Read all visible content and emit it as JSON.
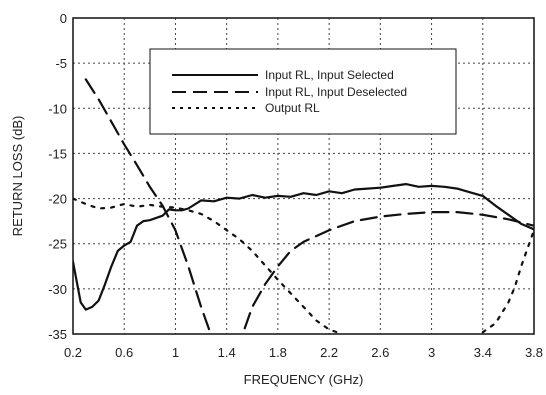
{
  "chart_data": {
    "type": "line",
    "xlabel": "FREQUENCY (GHz)",
    "ylabel": "RETURN LOSS (dB)",
    "xlim": [
      0.2,
      3.8
    ],
    "ylim": [
      -35,
      0
    ],
    "xticks": [
      "0.2",
      "0.6",
      "1",
      "1.4",
      "1.8",
      "2.2",
      "2.6",
      "3",
      "3.4",
      "3.8"
    ],
    "yticks": [
      "0",
      "-5",
      "-10",
      "-15",
      "-20",
      "-25",
      "-30",
      "-35"
    ],
    "grid": true,
    "legend_position": "top-right",
    "series": [
      {
        "name": "Input RL, Input Selected",
        "style": "solid",
        "x": [
          0.2,
          0.26,
          0.3,
          0.35,
          0.4,
          0.45,
          0.5,
          0.55,
          0.6,
          0.65,
          0.7,
          0.75,
          0.8,
          0.9,
          0.95,
          1.0,
          1.05,
          1.1,
          1.2,
          1.3,
          1.4,
          1.5,
          1.6,
          1.7,
          1.8,
          1.9,
          2.0,
          2.1,
          2.2,
          2.3,
          2.4,
          2.5,
          2.6,
          2.7,
          2.8,
          2.9,
          3.0,
          3.1,
          3.2,
          3.3,
          3.4,
          3.5,
          3.6,
          3.7,
          3.8
        ],
        "values": [
          -27.0,
          -31.5,
          -32.3,
          -32.0,
          -31.3,
          -29.5,
          -27.5,
          -25.8,
          -25.2,
          -24.8,
          -23.0,
          -22.5,
          -22.4,
          -21.9,
          -21.2,
          -21.3,
          -21.3,
          -21.1,
          -20.2,
          -20.3,
          -19.9,
          -20.0,
          -19.6,
          -19.9,
          -19.7,
          -19.8,
          -19.4,
          -19.6,
          -19.2,
          -19.4,
          -19.0,
          -18.9,
          -18.8,
          -18.6,
          -18.4,
          -18.7,
          -18.6,
          -18.7,
          -18.9,
          -19.3,
          -19.7,
          -20.8,
          -21.8,
          -22.8,
          -23.4
        ]
      },
      {
        "name": "Input RL, Input Deselected",
        "style": "dashed",
        "x": [
          0.3,
          0.4,
          0.5,
          0.6,
          0.7,
          0.8,
          0.9,
          1.0,
          1.1,
          1.2,
          1.3,
          1.4,
          1.5,
          1.6,
          1.7,
          1.8,
          1.9,
          2.0,
          2.2,
          2.4,
          2.6,
          2.8,
          3.0,
          3.2,
          3.4,
          3.6,
          3.8
        ],
        "values": [
          -6.8,
          -9.0,
          -11.5,
          -14.0,
          -16.3,
          -18.7,
          -20.8,
          -23.5,
          -27.5,
          -32.0,
          -36.0,
          -36.0,
          -36.0,
          -32.0,
          -29.5,
          -27.5,
          -25.8,
          -24.8,
          -23.5,
          -22.5,
          -22.0,
          -21.7,
          -21.5,
          -21.5,
          -21.8,
          -22.3,
          -23.0
        ]
      },
      {
        "name": "Output RL",
        "style": "dotted",
        "x": [
          0.2,
          0.3,
          0.4,
          0.5,
          0.6,
          0.7,
          0.8,
          0.9,
          1.0,
          1.1,
          1.2,
          1.3,
          1.4,
          1.5,
          1.6,
          1.8,
          2.0,
          2.1,
          2.2,
          2.3
        ],
        "values": [
          -20.0,
          -20.6,
          -21.1,
          -21.0,
          -20.6,
          -20.9,
          -20.7,
          -20.9,
          -21.0,
          -21.3,
          -21.7,
          -22.5,
          -23.5,
          -24.5,
          -25.8,
          -29.0,
          -32.0,
          -33.5,
          -34.5,
          -35.0
        ]
      },
      {
        "name": "",
        "style": "dotted",
        "x": [
          3.4,
          3.5,
          3.6,
          3.65,
          3.7,
          3.75,
          3.8
        ],
        "values": [
          -34.8,
          -33.8,
          -31.5,
          -29.8,
          -27.5,
          -25.5,
          -23.5
        ]
      }
    ]
  }
}
